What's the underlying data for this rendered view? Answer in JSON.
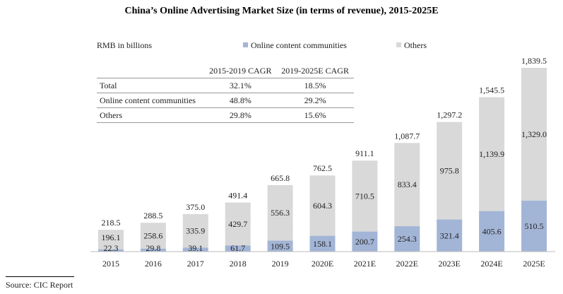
{
  "chart_data": {
    "type": "bar",
    "stacked": true,
    "title": "China’s Online Advertising Market Size (in terms of revenue), 2015-2025E",
    "ylabel": "RMB in billions",
    "categories": [
      "2015",
      "2016",
      "2017",
      "2018",
      "2019",
      "2020E",
      "2021E",
      "2022E",
      "2023E",
      "2024E",
      "2025E"
    ],
    "series": [
      {
        "name": "Online content communities",
        "color": "#a3b5d6",
        "values": [
          22.3,
          29.8,
          39.1,
          61.7,
          109.5,
          158.1,
          200.7,
          254.3,
          321.4,
          405.6,
          510.5
        ]
      },
      {
        "name": "Others",
        "color": "#d9d9d9",
        "values": [
          196.1,
          258.6,
          335.9,
          429.7,
          556.3,
          604.3,
          710.5,
          833.4,
          975.8,
          1139.9,
          1329.0
        ]
      }
    ],
    "totals": [
      "218.5",
      "288.5",
      "375.0",
      "491.4",
      "665.8",
      "762.5",
      "911.1",
      "1,087.7",
      "1,297.2",
      "1,545.5",
      "1,839.5"
    ],
    "labels_ocd": [
      "22.3",
      "29.8",
      "39.1",
      "61.7",
      "109.5",
      "158.1",
      "200.7",
      "254.3",
      "321.4",
      "405.6",
      "510.5"
    ],
    "labels_others": [
      "196.1",
      "258.6",
      "335.9",
      "429.7",
      "556.3",
      "604.3",
      "710.5",
      "833.4",
      "975.8",
      "1,139.9",
      "1,329.0"
    ],
    "ylim": [
      0,
      1839.5
    ],
    "grid": false,
    "legend_position": "top"
  },
  "cagr_table": {
    "headers": [
      "",
      "2015-2019 CAGR",
      "2019-2025E CAGR"
    ],
    "rows": [
      [
        "Total",
        "32.1%",
        "18.5%"
      ],
      [
        "Online content communities",
        "48.8%",
        "29.2%"
      ],
      [
        "Others",
        "29.8%",
        "15.6%"
      ]
    ]
  },
  "source": "Source: CIC Report"
}
